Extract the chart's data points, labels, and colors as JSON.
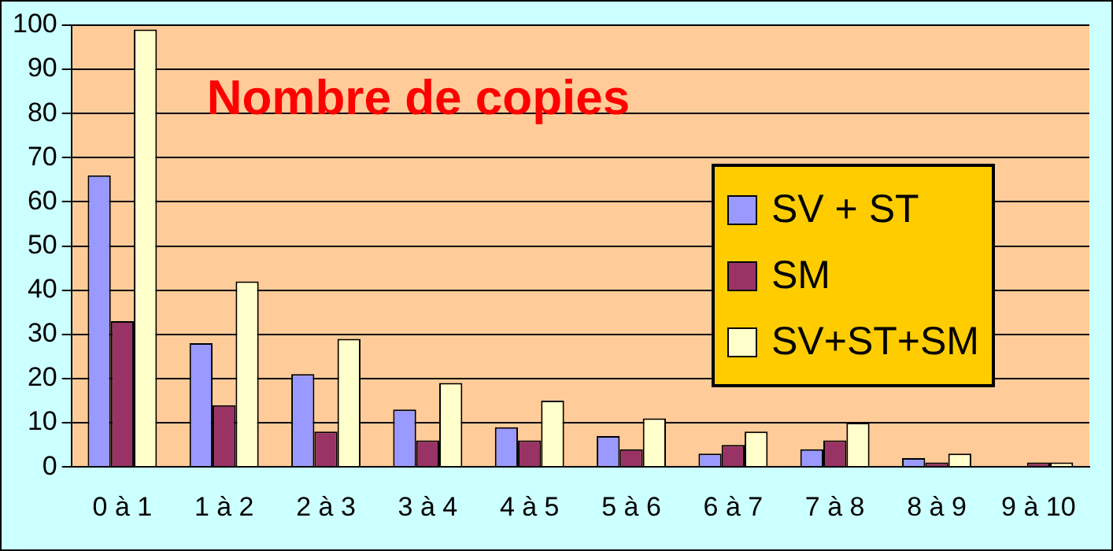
{
  "chart_data": {
    "type": "bar",
    "title": "Nombre de copies",
    "categories": [
      "0 à 1",
      "1 à 2",
      "2 à 3",
      "3 à 4",
      "4 à 5",
      "5 à 6",
      "6 à 7",
      "7 à 8",
      "8 à 9",
      "9 à 10"
    ],
    "series": [
      {
        "name": "SV + ST",
        "color": "#9999ff",
        "values": [
          66,
          28,
          21,
          13,
          9,
          7,
          3,
          4,
          2,
          0
        ]
      },
      {
        "name": "SM",
        "color": "#993366",
        "values": [
          33,
          14,
          8,
          6,
          6,
          4,
          5,
          6,
          1,
          1
        ]
      },
      {
        "name": "SV+ST+SM",
        "color": "#ffffcc",
        "values": [
          99,
          42,
          29,
          19,
          15,
          11,
          8,
          10,
          3,
          1
        ]
      }
    ],
    "ylim": [
      0,
      100
    ],
    "yticks": [
      0,
      10,
      20,
      30,
      40,
      50,
      60,
      70,
      80,
      90,
      100
    ],
    "grid": "y",
    "legend": "right"
  }
}
